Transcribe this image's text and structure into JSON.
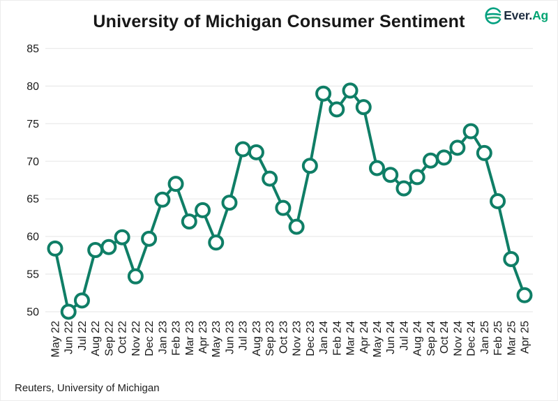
{
  "header": {
    "title": "University of Michigan Consumer Sentiment",
    "logo": {
      "prefix": "Ever.",
      "suffix": "Ag"
    }
  },
  "source_note": "Reuters, University of Michigan",
  "colors": {
    "line": "#0f7e66",
    "marker_fill": "#ffffff",
    "grid": "#ebebeb",
    "tick": "#1a1a1a",
    "title": "#171717",
    "logo_dark": "#1d2c3f",
    "logo_green": "#00a472",
    "logo_icon": "#00a080"
  },
  "chart_data": {
    "type": "line",
    "title": "University of Michigan Consumer Sentiment",
    "categories": [
      "May 22",
      "Jun 22",
      "Jul 22",
      "Aug 22",
      "Sep 22",
      "Oct 22",
      "Nov 22",
      "Dec 22",
      "Jan 23",
      "Feb 23",
      "Mar 23",
      "Apr 23",
      "May 23",
      "Jun 23",
      "Jul 23",
      "Aug 23",
      "Sep 23",
      "Oct 23",
      "Nov 23",
      "Dec 23",
      "Jan 24",
      "Feb 24",
      "Mar 24",
      "Apr 24",
      "May 24",
      "Jun 24",
      "Jul 24",
      "Aug 24",
      "Sep 24",
      "Oct 24",
      "Nov 24",
      "Dec 24",
      "Jan 25",
      "Feb 25",
      "Mar 25",
      "Apr 25"
    ],
    "values": [
      58.4,
      50.0,
      51.5,
      58.2,
      58.6,
      59.9,
      54.7,
      59.7,
      64.9,
      67.0,
      62.0,
      63.5,
      59.2,
      64.5,
      71.6,
      71.2,
      67.7,
      63.8,
      61.3,
      69.4,
      79.0,
      76.9,
      79.4,
      77.2,
      69.1,
      68.2,
      66.4,
      67.9,
      70.1,
      70.5,
      71.8,
      74.0,
      71.1,
      64.7,
      57.0,
      52.2
    ],
    "xlabel": "",
    "ylabel": "",
    "ylim": [
      50,
      85
    ],
    "yticks": [
      50,
      55,
      60,
      65,
      70,
      75,
      80,
      85
    ],
    "grid": "horizontal",
    "legend": "none",
    "marker": "open-circle"
  }
}
